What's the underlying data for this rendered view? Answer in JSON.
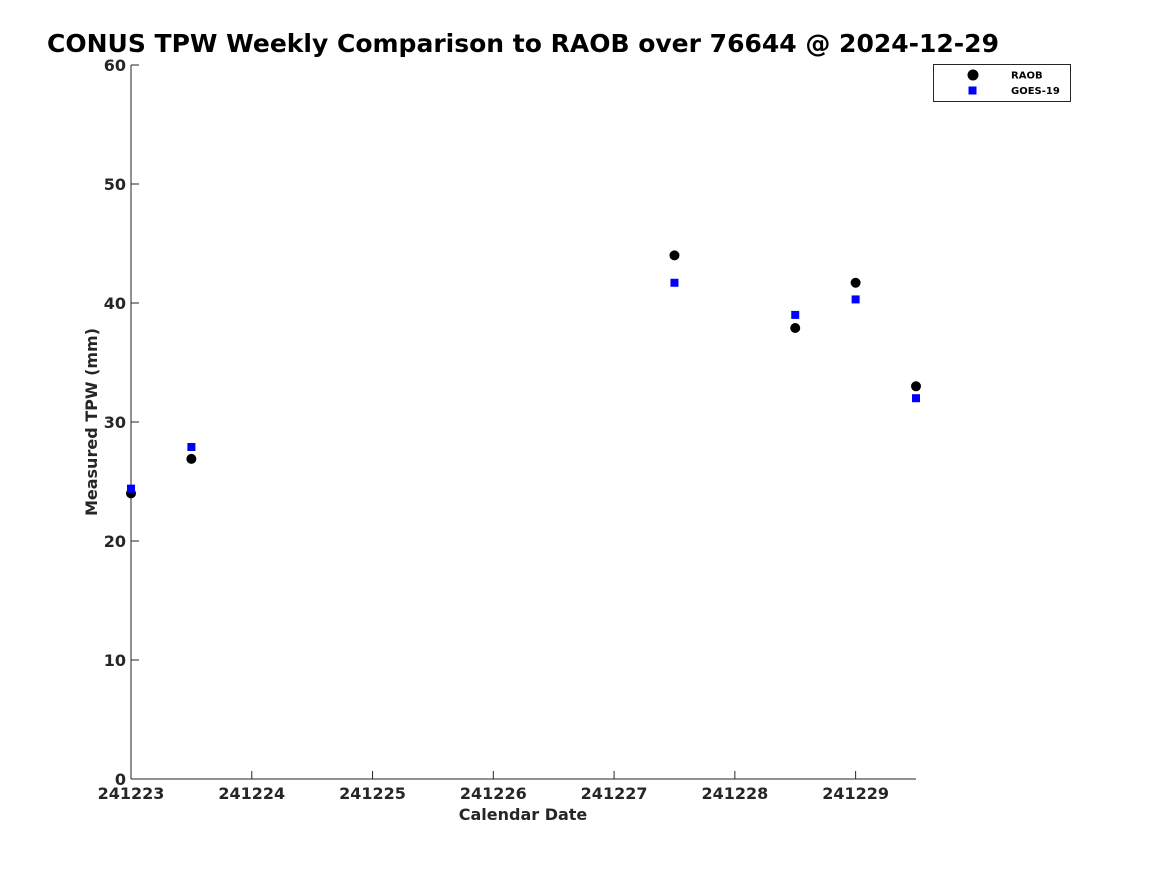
{
  "chart_data": {
    "type": "scatter",
    "title": "CONUS TPW Weekly Comparison to RAOB over 76644 @ 2024-12-29",
    "xlabel": "Calendar Date",
    "ylabel": "Measured TPW (mm)",
    "x_ticks": [
      "241223",
      "241224",
      "241225",
      "241226",
      "241227",
      "241228",
      "241229"
    ],
    "xlim": [
      "2024-12-23",
      "2024-12-29 12:00"
    ],
    "ylim": [
      0,
      60
    ],
    "y_ticks": [
      0,
      10,
      20,
      30,
      40,
      50,
      60
    ],
    "grid": false,
    "legend_position": "top-right",
    "series": [
      {
        "name": "RAOB",
        "marker": "circle",
        "color": "#000000",
        "points": [
          {
            "x": "2024-12-23 00:00",
            "y": 24.0
          },
          {
            "x": "2024-12-23 12:00",
            "y": 26.9
          },
          {
            "x": "2024-12-27 12:00",
            "y": 44.0
          },
          {
            "x": "2024-12-28 12:00",
            "y": 37.9
          },
          {
            "x": "2024-12-29 00:00",
            "y": 41.7
          },
          {
            "x": "2024-12-29 12:00",
            "y": 33.0
          }
        ]
      },
      {
        "name": "GOES-19",
        "marker": "square",
        "color": "#0000ff",
        "points": [
          {
            "x": "2024-12-23 00:00",
            "y": 24.4
          },
          {
            "x": "2024-12-23 12:00",
            "y": 27.9
          },
          {
            "x": "2024-12-27 12:00",
            "y": 41.7
          },
          {
            "x": "2024-12-28 12:00",
            "y": 39.0
          },
          {
            "x": "2024-12-29 00:00",
            "y": 40.3
          },
          {
            "x": "2024-12-29 12:00",
            "y": 32.0
          }
        ]
      }
    ]
  }
}
